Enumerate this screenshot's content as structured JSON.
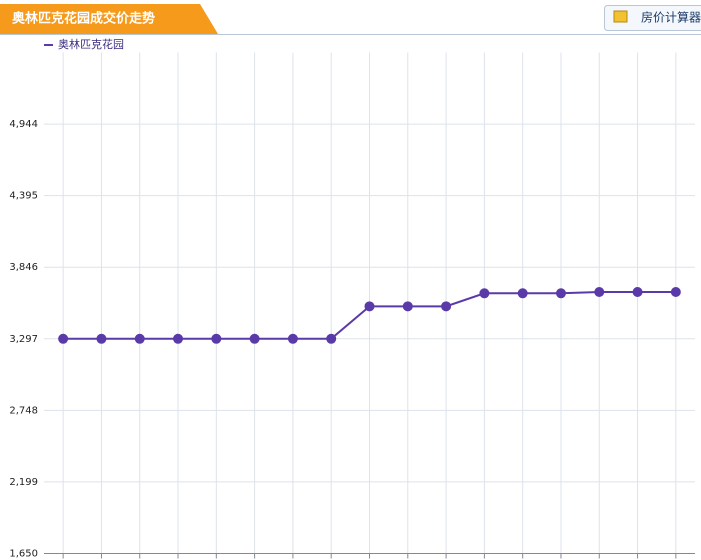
{
  "header": {
    "title": "奥林匹克花园成交价走势",
    "button": "房价计算器"
  },
  "chart_data": {
    "type": "line",
    "categories": [
      null,
      null,
      null,
      null,
      null,
      null,
      null,
      null,
      null,
      null,
      null,
      null,
      null,
      null,
      null,
      null,
      null
    ],
    "series": [
      {
        "name": "奥林匹克花园",
        "color": "#5a3aa8",
        "values": [
          3297,
          3297,
          3297,
          3297,
          3297,
          3297,
          3297,
          3297,
          3546,
          3546,
          3546,
          3646,
          3646,
          3646,
          3656,
          3656,
          3656
        ]
      }
    ],
    "ylim": [
      1650,
      5493
    ],
    "yticks": [
      {
        "value": 1650,
        "label": "1,650"
      },
      {
        "value": 2199,
        "label": "2,199"
      },
      {
        "value": 2748,
        "label": "2,748"
      },
      {
        "value": 3297,
        "label": "3,297"
      },
      {
        "value": 3846,
        "label": "3,846"
      },
      {
        "value": 4395,
        "label": "4,395"
      },
      {
        "value": 4944,
        "label": "4,944"
      }
    ],
    "grid": true
  }
}
